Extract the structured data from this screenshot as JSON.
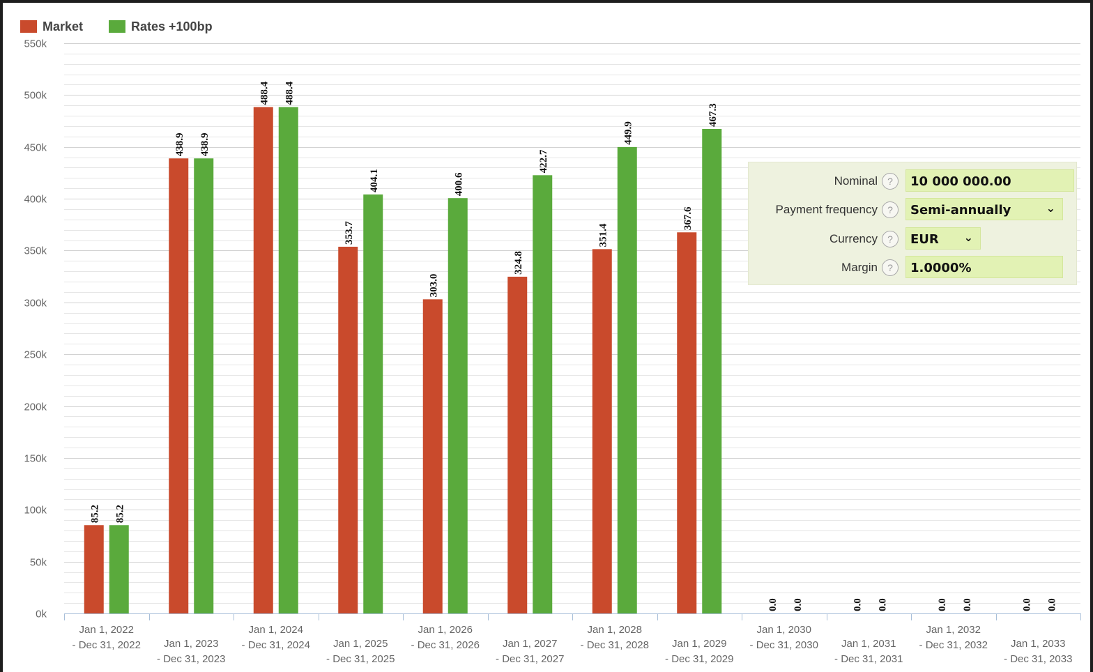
{
  "chart_data": {
    "type": "bar",
    "legend": [
      {
        "name": "Market",
        "color": "#c94a2c"
      },
      {
        "name": "Rates +100bp",
        "color": "#5aaa3c"
      }
    ],
    "categories": [
      [
        "Jan 1, 2022",
        "- Dec 31, 2022"
      ],
      [
        "Jan 1, 2023",
        "- Dec 31, 2023"
      ],
      [
        "Jan 1, 2024",
        "- Dec 31, 2024"
      ],
      [
        "Jan 1, 2025",
        "- Dec 31, 2025"
      ],
      [
        "Jan 1, 2026",
        "- Dec 31, 2026"
      ],
      [
        "Jan 1, 2027",
        "- Dec 31, 2027"
      ],
      [
        "Jan 1, 2028",
        "- Dec 31, 2028"
      ],
      [
        "Jan 1, 2029",
        "- Dec 31, 2029"
      ],
      [
        "Jan 1, 2030",
        "- Dec 31, 2030"
      ],
      [
        "Jan 1, 2031",
        "- Dec 31, 2031"
      ],
      [
        "Jan 1, 2032",
        "- Dec 31, 2032"
      ],
      [
        "Jan 1, 2033",
        "- Dec 31, 2033"
      ]
    ],
    "series": [
      {
        "name": "Market",
        "values": [
          85200,
          438900,
          488400,
          353700,
          303000,
          324800,
          351400,
          367600,
          0,
          0,
          0,
          0
        ],
        "labels": [
          "85.2",
          "438.9",
          "488.4",
          "353.7",
          "303.0",
          "324.8",
          "351.4",
          "367.6",
          "0.0",
          "0.0",
          "0.0",
          "0.0"
        ]
      },
      {
        "name": "Rates +100bp",
        "values": [
          85200,
          438900,
          488400,
          404100,
          400600,
          422700,
          449900,
          467300,
          0,
          0,
          0,
          0
        ],
        "labels": [
          "85.2",
          "438.9",
          "488.4",
          "404.1",
          "400.6",
          "422.7",
          "449.9",
          "467.3",
          "0.0",
          "0.0",
          "0.0",
          "0.0"
        ]
      }
    ],
    "ylim": [
      0,
      550000
    ],
    "yticks": [
      0,
      50000,
      100000,
      150000,
      200000,
      250000,
      300000,
      350000,
      400000,
      450000,
      500000,
      550000
    ],
    "ytick_labels": [
      "0k",
      "50k",
      "100k",
      "150k",
      "200k",
      "250k",
      "300k",
      "350k",
      "400k",
      "450k",
      "500k",
      "550k"
    ],
    "minor_grid_step": 10000,
    "grid": true,
    "legend_position": "top-left",
    "title": "",
    "xlabel": "",
    "ylabel": ""
  },
  "settings": {
    "nominal": {
      "label": "Nominal",
      "value": "10 000 000.00"
    },
    "payment_frequency": {
      "label": "Payment frequency",
      "value": "Semi-annually"
    },
    "currency": {
      "label": "Currency",
      "value": "EUR"
    },
    "margin": {
      "label": "Margin",
      "value": "1.0000%"
    },
    "help_glyph": "?",
    "dropdown_glyph": "⌄"
  }
}
